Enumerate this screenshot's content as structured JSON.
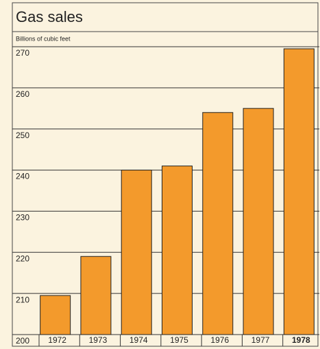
{
  "chart_data": {
    "type": "bar",
    "title": "Gas sales",
    "subtitle": "Billions of cubic feet",
    "categories": [
      "1972",
      "1973",
      "1974",
      "1975",
      "1976",
      "1977",
      "1978"
    ],
    "values": [
      209.5,
      219,
      240,
      241,
      254,
      255,
      269.5
    ],
    "color": "#f39a2c",
    "ylim": [
      200,
      270
    ],
    "yticks": [
      200,
      210,
      220,
      230,
      240,
      250,
      260,
      270
    ],
    "grid": true
  }
}
